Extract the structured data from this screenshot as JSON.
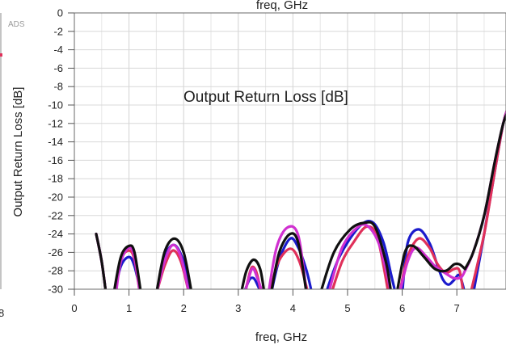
{
  "chart_data": {
    "type": "line",
    "watermark": "ADS",
    "title": "Output Return Loss [dB]",
    "xlabel": "freq, GHz",
    "xlabel_top": "freq, GHz",
    "ylabel": "Output Return Loss [dB]",
    "xlim": [
      0,
      7.9
    ],
    "ylim": [
      -30,
      0
    ],
    "grid": true,
    "x_ticks": [
      "0",
      "1",
      "2",
      "3",
      "4",
      "5",
      "6",
      "7"
    ],
    "y_ticks": [
      "0",
      "-2",
      "-4",
      "-6",
      "-8",
      "-10",
      "-12",
      "-14",
      "-16",
      "-18",
      "-20",
      "-22",
      "-24",
      "-26",
      "-28",
      "-30"
    ],
    "left_partial_tick": "8",
    "colors": {
      "blue": "#1a1acc",
      "red": "#e0305a",
      "magenta": "#d030d0",
      "black": "#101010"
    },
    "series": [
      {
        "color": "#1a1acc",
        "segments": [
          [
            [
              0.4,
              -24
            ],
            [
              0.5,
              -27
            ],
            [
              0.58,
              -30.5
            ]
          ],
          [
            [
              0.73,
              -30.5
            ],
            [
              0.85,
              -27.5
            ],
            [
              1.0,
              -26.5
            ],
            [
              1.1,
              -27.5
            ],
            [
              1.22,
              -30.5
            ]
          ],
          [
            [
              1.5,
              -30.5
            ],
            [
              1.65,
              -26.5
            ],
            [
              1.83,
              -25.2
            ],
            [
              2.0,
              -27
            ],
            [
              2.15,
              -30.5
            ]
          ],
          [
            [
              3.1,
              -30.5
            ],
            [
              3.2,
              -29
            ],
            [
              3.28,
              -28.8
            ],
            [
              3.35,
              -29.5
            ],
            [
              3.42,
              -30.5
            ]
          ],
          [
            [
              3.6,
              -30.5
            ],
            [
              3.75,
              -26.8
            ],
            [
              3.95,
              -24.5
            ],
            [
              4.1,
              -25.5
            ],
            [
              4.25,
              -28
            ],
            [
              4.35,
              -30.5
            ]
          ],
          [
            [
              4.6,
              -30.5
            ],
            [
              4.85,
              -26.5
            ],
            [
              5.2,
              -23.3
            ],
            [
              5.45,
              -22.7
            ],
            [
              5.65,
              -24.8
            ],
            [
              5.8,
              -28.5
            ],
            [
              5.88,
              -30.5
            ]
          ],
          [
            [
              6.0,
              -30.5
            ],
            [
              6.1,
              -25
            ],
            [
              6.3,
              -23.5
            ],
            [
              6.5,
              -25
            ],
            [
              6.65,
              -27.5
            ],
            [
              6.75,
              -29
            ],
            [
              6.85,
              -29.5
            ],
            [
              6.95,
              -29
            ],
            [
              7.05,
              -28.5
            ],
            [
              7.15,
              -30.5
            ]
          ],
          [
            [
              7.3,
              -30.5
            ],
            [
              7.5,
              -24
            ],
            [
              7.7,
              -17
            ],
            [
              7.85,
              -12
            ],
            [
              7.95,
              -10
            ]
          ]
        ]
      },
      {
        "color": "#e0305a",
        "segments": [
          [
            [
              0.4,
              -24
            ],
            [
              0.5,
              -27
            ],
            [
              0.58,
              -30.5
            ]
          ],
          [
            [
              0.74,
              -30.5
            ],
            [
              0.85,
              -26.8
            ],
            [
              1.0,
              -25.8
            ],
            [
              1.1,
              -26.8
            ],
            [
              1.2,
              -30.5
            ]
          ],
          [
            [
              1.5,
              -30.5
            ],
            [
              1.65,
              -27.5
            ],
            [
              1.8,
              -25.8
            ],
            [
              1.95,
              -27
            ],
            [
              2.1,
              -30.5
            ]
          ],
          [
            [
              3.12,
              -30.5
            ],
            [
              3.22,
              -28
            ],
            [
              3.28,
              -27.6
            ],
            [
              3.35,
              -28.5
            ],
            [
              3.42,
              -30.5
            ]
          ],
          [
            [
              3.58,
              -30.5
            ],
            [
              3.72,
              -27.2
            ],
            [
              3.95,
              -25.6
            ],
            [
              4.12,
              -27
            ],
            [
              4.28,
              -30.5
            ]
          ],
          [
            [
              4.7,
              -30.5
            ],
            [
              4.9,
              -27
            ],
            [
              5.1,
              -25
            ],
            [
              5.35,
              -23.2
            ],
            [
              5.55,
              -24.5
            ],
            [
              5.75,
              -30.5
            ]
          ],
          [
            [
              5.95,
              -30.5
            ],
            [
              6.1,
              -26.5
            ],
            [
              6.3,
              -24.5
            ],
            [
              6.5,
              -25.5
            ],
            [
              6.65,
              -27.3
            ],
            [
              6.8,
              -28.2
            ],
            [
              6.95,
              -27.8
            ],
            [
              7.05,
              -28
            ],
            [
              7.12,
              -30.5
            ]
          ],
          [
            [
              7.25,
              -30.5
            ],
            [
              7.5,
              -24
            ],
            [
              7.7,
              -17
            ],
            [
              7.85,
              -12
            ],
            [
              7.95,
              -10
            ]
          ]
        ]
      },
      {
        "color": "#d030d0",
        "segments": [
          [
            [
              0.4,
              -24
            ],
            [
              0.5,
              -27
            ],
            [
              0.58,
              -30.5
            ]
          ],
          [
            [
              0.76,
              -30.5
            ],
            [
              0.85,
              -27
            ],
            [
              1.0,
              -25.5
            ],
            [
              1.1,
              -26.5
            ],
            [
              1.2,
              -30.5
            ]
          ],
          [
            [
              1.5,
              -30.5
            ],
            [
              1.65,
              -27
            ],
            [
              1.8,
              -25.2
            ],
            [
              1.95,
              -26.5
            ],
            [
              2.1,
              -30.5
            ]
          ],
          [
            [
              3.12,
              -30.5
            ],
            [
              3.25,
              -27.8
            ],
            [
              3.35,
              -28.8
            ],
            [
              3.45,
              -30.5
            ]
          ],
          [
            [
              3.55,
              -30.5
            ],
            [
              3.7,
              -25.5
            ],
            [
              3.9,
              -23.3
            ],
            [
              4.1,
              -24.2
            ],
            [
              4.25,
              -30.5
            ]
          ],
          [
            [
              4.65,
              -30.5
            ],
            [
              4.9,
              -25.5
            ],
            [
              5.2,
              -23.2
            ],
            [
              5.4,
              -23.3
            ],
            [
              5.6,
              -25.5
            ],
            [
              5.8,
              -30.5
            ]
          ],
          [
            [
              5.95,
              -30.5
            ],
            [
              6.1,
              -27
            ],
            [
              6.25,
              -25.5
            ],
            [
              6.45,
              -26.5
            ],
            [
              6.6,
              -27.5
            ],
            [
              6.8,
              -28.3
            ],
            [
              6.95,
              -28.8
            ],
            [
              7.08,
              -28.7
            ],
            [
              7.15,
              -28
            ]
          ],
          [
            [
              7.15,
              -28
            ],
            [
              7.3,
              -26
            ],
            [
              7.5,
              -22
            ],
            [
              7.7,
              -16
            ],
            [
              7.85,
              -12
            ],
            [
              7.95,
              -10
            ]
          ]
        ]
      },
      {
        "color": "#101010",
        "segments": [
          [
            [
              0.4,
              -24
            ],
            [
              0.5,
              -27
            ],
            [
              0.58,
              -30.5
            ]
          ],
          [
            [
              0.72,
              -30.5
            ],
            [
              0.85,
              -26.5
            ],
            [
              1.0,
              -25.3
            ],
            [
              1.1,
              -26
            ],
            [
              1.22,
              -30.5
            ]
          ],
          [
            [
              1.5,
              -30.5
            ],
            [
              1.65,
              -26
            ],
            [
              1.83,
              -24.5
            ],
            [
              2.0,
              -26
            ],
            [
              2.15,
              -30.5
            ]
          ],
          [
            [
              3.05,
              -30.5
            ],
            [
              3.15,
              -28
            ],
            [
              3.28,
              -26.8
            ],
            [
              3.4,
              -27.8
            ],
            [
              3.48,
              -30.5
            ]
          ],
          [
            [
              3.6,
              -30.5
            ],
            [
              3.75,
              -26
            ],
            [
              3.95,
              -24
            ],
            [
              4.1,
              -25
            ],
            [
              4.25,
              -30.5
            ]
          ],
          [
            [
              4.5,
              -30.5
            ],
            [
              4.75,
              -26
            ],
            [
              5.05,
              -23.5
            ],
            [
              5.3,
              -22.8
            ],
            [
              5.5,
              -23.2
            ],
            [
              5.7,
              -27
            ],
            [
              5.8,
              -30.5
            ]
          ],
          [
            [
              5.9,
              -30.5
            ],
            [
              6.05,
              -26
            ],
            [
              6.2,
              -25.3
            ],
            [
              6.4,
              -26.5
            ],
            [
              6.6,
              -27.8
            ],
            [
              6.8,
              -28
            ],
            [
              6.95,
              -27.3
            ],
            [
              7.05,
              -27.3
            ],
            [
              7.15,
              -27.8
            ]
          ],
          [
            [
              7.15,
              -27.8
            ],
            [
              7.3,
              -26
            ],
            [
              7.5,
              -22
            ],
            [
              7.7,
              -16
            ],
            [
              7.85,
              -12
            ],
            [
              7.95,
              -10.5
            ]
          ]
        ]
      }
    ]
  }
}
